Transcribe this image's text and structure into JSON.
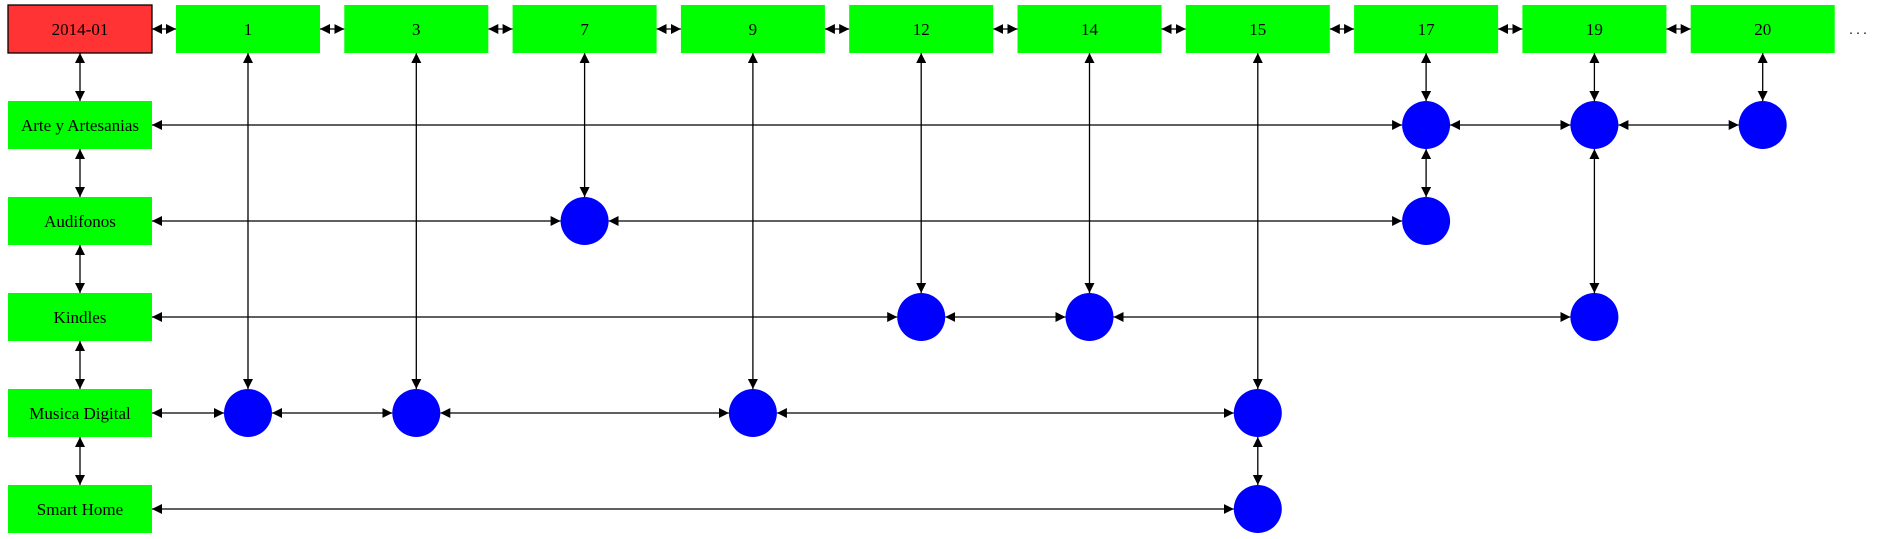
{
  "header": {
    "label": "2014-01",
    "fill": "#ff3333"
  },
  "colors": {
    "box": "#00ff00",
    "node": "#0000ff",
    "edge": "#000000"
  },
  "columns": [
    "1",
    "3",
    "7",
    "9",
    "12",
    "14",
    "15",
    "17",
    "19",
    "20"
  ],
  "rows": [
    "Arte y Artesanias",
    "Audifonos",
    "Kindles",
    "Musica Digital",
    "Smart Home"
  ],
  "overflow_text": ". . .",
  "nodes": [
    {
      "row": 0,
      "col": 7
    },
    {
      "row": 0,
      "col": 8
    },
    {
      "row": 0,
      "col": 9
    },
    {
      "row": 1,
      "col": 2
    },
    {
      "row": 1,
      "col": 7
    },
    {
      "row": 2,
      "col": 4
    },
    {
      "row": 2,
      "col": 5
    },
    {
      "row": 2,
      "col": 8
    },
    {
      "row": 3,
      "col": 0
    },
    {
      "row": 3,
      "col": 1
    },
    {
      "row": 3,
      "col": 3
    },
    {
      "row": 3,
      "col": 6
    },
    {
      "row": 4,
      "col": 6
    }
  ]
}
